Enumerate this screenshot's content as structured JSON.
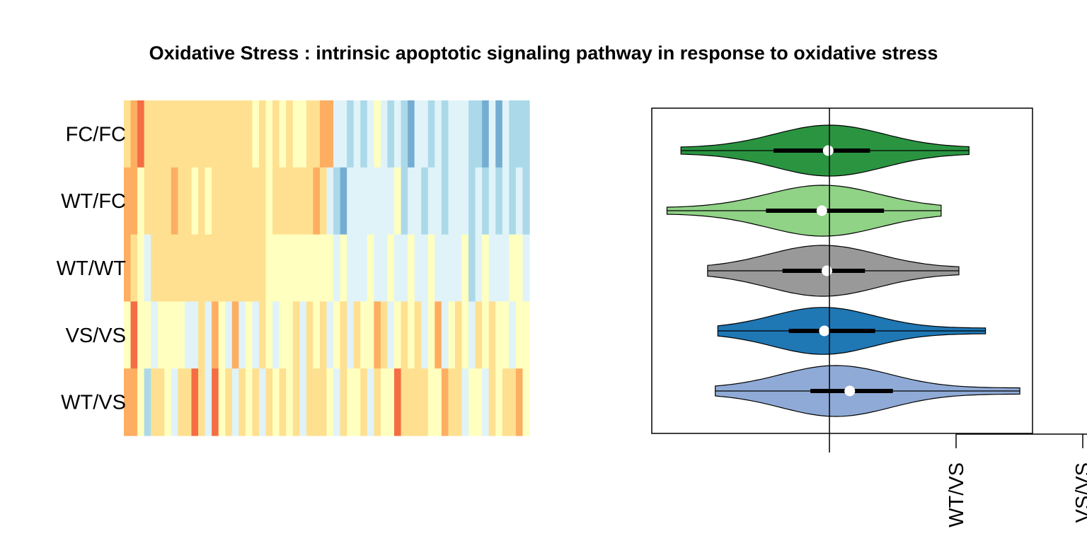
{
  "title": "Oxidative Stress : intrinsic apoptotic signaling pathway in response to oxidative stress",
  "chart_data": [
    {
      "type": "heatmap",
      "rows": [
        "FC/FC",
        "WT/FC",
        "WT/WT",
        "VS/VS",
        "WT/VS"
      ],
      "n_columns": 60,
      "value_scale": "-3 (blue) to 3 (red), RdYlBu palette",
      "palette": [
        "#4575b4",
        "#74add1",
        "#abd9e9",
        "#e0f3f8",
        "#ffffbf",
        "#fee090",
        "#fdae61",
        "#f46d43",
        "#d73027"
      ],
      "values": [
        [
          1,
          1.6,
          2.4,
          0.4,
          0.8,
          0.5,
          0.7,
          0.9,
          0.6,
          0.8,
          0.7,
          0.9,
          1.1,
          0.9,
          0.7,
          0.5,
          0.9,
          0.4,
          0.7,
          0.2,
          0.4,
          0.2,
          0.5,
          0.3,
          0.8,
          0.3,
          0.2,
          0.8,
          0.5,
          1.2,
          1.4,
          -0.5,
          -1.0,
          -1.3,
          -0.7,
          -1.8,
          -0.6,
          0.1,
          -0.9,
          -1.5,
          -0.5,
          -1.4,
          -2.1,
          -0.6,
          -1.1,
          -1.8,
          -0.5,
          -1.6,
          -0.7,
          -1.1,
          -0.6,
          -1.3,
          -1.7,
          -2.3,
          -0.7,
          -1.9,
          -1.0,
          -1.7,
          -1.2,
          -1.5
        ],
        [
          1.5,
          1.2,
          0.2,
          0.5,
          1.0,
          1.1,
          0.5,
          1.3,
          0.7,
          0.4,
          0.3,
          0.5,
          0.1,
          0.7,
          0.9,
          0.6,
          1.0,
          0.4,
          0.7,
          0.5,
          0.8,
          0.3,
          0.6,
          0.4,
          0.5,
          0.9,
          1.1,
          0.6,
          1.2,
          0.5,
          -0.8,
          -1.3,
          -2.2,
          -0.7,
          -1.1,
          -0.4,
          -1.1,
          -0.5,
          -0.8,
          -1.0,
          -0.2,
          -1.5,
          -0.6,
          -0.9,
          -1.2,
          -0.4,
          -0.9,
          -1.3,
          -0.7,
          -1.1,
          -0.5,
          -1.7,
          -0.6,
          -1.5,
          -1.0,
          -1.2,
          -0.4,
          -1.8,
          -1.0,
          -1.3
        ],
        [
          1.5,
          0.8,
          0.2,
          -0.4,
          0.4,
          0.6,
          0.6,
          0.6,
          0.5,
          1.0,
          0.6,
          0.5,
          0.8,
          0.9,
          0.6,
          0.9,
          0.9,
          0.5,
          0.7,
          0.4,
          0.8,
          0.2,
          0.1,
          0.3,
          0.2,
          0.1,
          0.3,
          0.1,
          0.2,
          0.2,
          0.1,
          -0.4,
          -0.2,
          -0.6,
          -0.4,
          -0.7,
          0.2,
          -0.8,
          -0.5,
          0.3,
          -0.5,
          -0.7,
          -0.2,
          -0.9,
          -0.5,
          -0.3,
          -0.7,
          -0.4,
          -1.1,
          -0.6,
          -0.3,
          -1.5,
          -0.5,
          -0.2,
          -0.8,
          -0.4,
          -1.0,
          -0.3,
          -0.2,
          -0.6
        ],
        [
          0.3,
          2.5,
          0.1,
          0.2,
          -0.4,
          0.1,
          -0.2,
          -0.3,
          0.2,
          -1.0,
          -0.5,
          0.9,
          -0.4,
          1.8,
          0.1,
          -0.6,
          1.3,
          -0.5,
          0.0,
          -0.7,
          0.6,
          -0.3,
          -0.8,
          0.2,
          -0.3,
          0.4,
          -0.9,
          0.8,
          -0.2,
          0.5,
          -0.7,
          0.3,
          0.8,
          -0.4,
          1.0,
          -0.2,
          0.3,
          1.4,
          0.5,
          -0.5,
          0.3,
          0.8,
          -0.3,
          1.0,
          -0.6,
          0.2,
          1.2,
          -0.7,
          -0.3,
          0.6,
          0.0,
          -0.4,
          1.1,
          -0.2,
          0.6,
          0.2,
          0.0,
          -0.5,
          0.3,
          0.2
        ],
        [
          1.3,
          1.2,
          0.3,
          -1.5,
          0.7,
          0.5,
          0.2,
          -0.4,
          0.4,
          0.7,
          2.6,
          1.0,
          -0.6,
          1.9,
          0.2,
          0.8,
          -0.5,
          0.5,
          -0.3,
          0.9,
          -0.9,
          0.4,
          0.3,
          0.8,
          0.2,
          0.7,
          -0.8,
          0.6,
          0.5,
          0.4,
          0.2,
          -0.4,
          0.6,
          0.1,
          0.3,
          0.8,
          -0.5,
          0.4,
          0.2,
          -0.3,
          1.9,
          0.5,
          1.0,
          1.0,
          0.6,
          0.2,
          0.3,
          1.7,
          0.4,
          0.7,
          -0.5,
          0.3,
          0.2,
          -0.9,
          0.5,
          0.3,
          1.0,
          0.7,
          1.7,
          -0.2
        ]
      ]
    },
    {
      "type": "violin",
      "orientation": "horizontal",
      "categories": [
        "WT/VS",
        "VS/VS",
        "WT/WT",
        "WT/FC",
        "FC/FC"
      ],
      "reference_line": 0,
      "xlim": [
        -1.4,
        1.6
      ],
      "series": [
        {
          "category": "WT/VS",
          "color": "#8faad6",
          "min": -0.9,
          "max": 1.5,
          "q1": -0.15,
          "q3": 0.5,
          "median": 0.16,
          "peak": 0.05,
          "halfwidth": 0.78
        },
        {
          "category": "VS/VS",
          "color": "#1f77b4",
          "min": -0.88,
          "max": 1.23,
          "q1": -0.32,
          "q3": 0.36,
          "median": -0.04,
          "peak": -0.05,
          "halfwidth": 0.72
        },
        {
          "category": "WT/WT",
          "color": "#999999",
          "min": -0.96,
          "max": 1.02,
          "q1": -0.37,
          "q3": 0.28,
          "median": -0.02,
          "peak": -0.05,
          "halfwidth": 0.78
        },
        {
          "category": "WT/FC",
          "color": "#90d286",
          "min": -1.28,
          "max": 0.88,
          "q1": -0.5,
          "q3": 0.43,
          "median": -0.06,
          "peak": -0.05,
          "halfwidth": 0.8
        },
        {
          "category": "FC/FC",
          "color": "#2a9441",
          "min": -1.17,
          "max": 1.1,
          "q1": -0.44,
          "q3": 0.32,
          "median": -0.01,
          "peak": 0.0,
          "halfwidth": 0.78
        }
      ],
      "axis_tick_labels": [
        "WT/VS",
        "VS/VS"
      ]
    }
  ]
}
